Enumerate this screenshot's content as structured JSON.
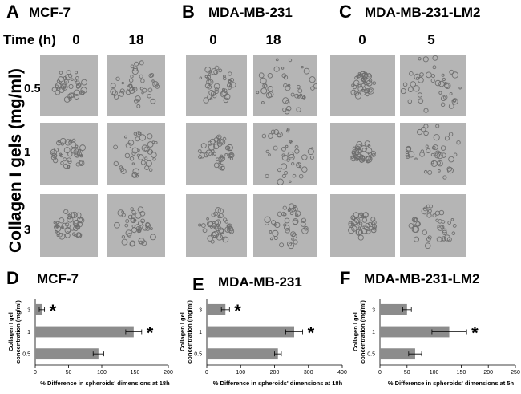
{
  "panels": {
    "A": {
      "letter": "A",
      "title": "MCF-7"
    },
    "B": {
      "letter": "B",
      "title": "MDA-MB-231"
    },
    "C": {
      "letter": "C",
      "title": "MDA-MB-231-LM2"
    },
    "D": {
      "letter": "D",
      "title": "MCF-7"
    },
    "E": {
      "letter": "E",
      "title": "MDA-MB-231"
    },
    "F": {
      "letter": "F",
      "title": "MDA-MB-231-LM2"
    }
  },
  "time_label": "Time (h)",
  "times": {
    "A": [
      "0",
      "18"
    ],
    "B": [
      "0",
      "18"
    ],
    "C": [
      "0",
      "5"
    ]
  },
  "concentrations": [
    "0.5",
    "1",
    "3"
  ],
  "side_label": "Collagen I gels (mg/ml)",
  "colors": {
    "bar": "#8c8c8c",
    "micrograph_bg": "#b5b5b5",
    "cell": "#6e6e6e"
  },
  "chart_data": [
    {
      "type": "bar",
      "orientation": "horizontal",
      "panel": "D",
      "categories": [
        "0.5",
        "1",
        "3"
      ],
      "values": [
        95,
        148,
        10
      ],
      "errors": [
        8,
        12,
        4
      ],
      "significant": [
        false,
        true,
        true
      ],
      "xlabel": "% Difference in spheroids' dimensions at 18h",
      "ylabel": "Collagen I gel concentration (mg/ml)",
      "xlim": [
        0,
        200
      ],
      "xticks": [
        "0",
        "50",
        "100",
        "150",
        "200"
      ],
      "marker": "*"
    },
    {
      "type": "bar",
      "orientation": "horizontal",
      "panel": "E",
      "categories": [
        "0.5",
        "1",
        "3"
      ],
      "values": [
        210,
        258,
        55
      ],
      "errors": [
        10,
        25,
        12
      ],
      "significant": [
        false,
        true,
        true
      ],
      "xlabel": "% Difference in spheroids' dimensions at 18h",
      "ylabel": "Collagen I gel concentration (mg/ml)",
      "xlim": [
        0,
        400
      ],
      "xticks": [
        "0",
        "100",
        "200",
        "300",
        "400"
      ],
      "marker": "*"
    },
    {
      "type": "bar",
      "orientation": "horizontal",
      "panel": "F",
      "categories": [
        "0.5",
        "1",
        "3"
      ],
      "values": [
        65,
        128,
        50
      ],
      "errors": [
        12,
        32,
        8
      ],
      "significant": [
        false,
        true,
        false
      ],
      "xlabel": "% Difference in spheroids' dimensions at 5h",
      "ylabel": "Collagen I gel concentration (mg/ml)",
      "xlim": [
        0,
        250
      ],
      "xticks": [
        "0",
        "50",
        "100",
        "150",
        "200",
        "250"
      ],
      "marker": "*"
    }
  ]
}
